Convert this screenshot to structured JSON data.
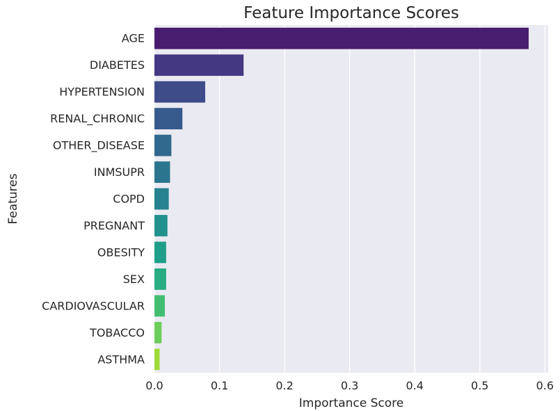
{
  "chart_data": {
    "type": "bar",
    "orientation": "horizontal",
    "title": "Feature Importance Scores",
    "xlabel": "Importance Score",
    "ylabel": "Features",
    "xlim": [
      0,
      0.605
    ],
    "xticks": [
      "0.0",
      "0.1",
      "0.2",
      "0.3",
      "0.4",
      "0.5",
      "0.6"
    ],
    "xtick_values": [
      0,
      0.1,
      0.2,
      0.3,
      0.4,
      0.5,
      0.6
    ],
    "grid": true,
    "categories": [
      "AGE",
      "DIABETES",
      "HYPERTENSION",
      "RENAL_CHRONIC",
      "OTHER_DISEASE",
      "INMSUPR",
      "COPD",
      "PREGNANT",
      "OBESITY",
      "SEX",
      "CARDIOVASCULAR",
      "TOBACCO",
      "ASTHMA"
    ],
    "values": [
      0.575,
      0.137,
      0.078,
      0.043,
      0.026,
      0.024,
      0.022,
      0.02,
      0.018,
      0.018,
      0.016,
      0.011,
      0.008
    ],
    "colors": [
      "#481c6e",
      "#453882",
      "#3e4c8a",
      "#375b8d",
      "#31688e",
      "#2b758e",
      "#26828e",
      "#21918c",
      "#1f9e89",
      "#27ad81",
      "#42be71",
      "#6ccd5a",
      "#a0da39"
    ]
  }
}
